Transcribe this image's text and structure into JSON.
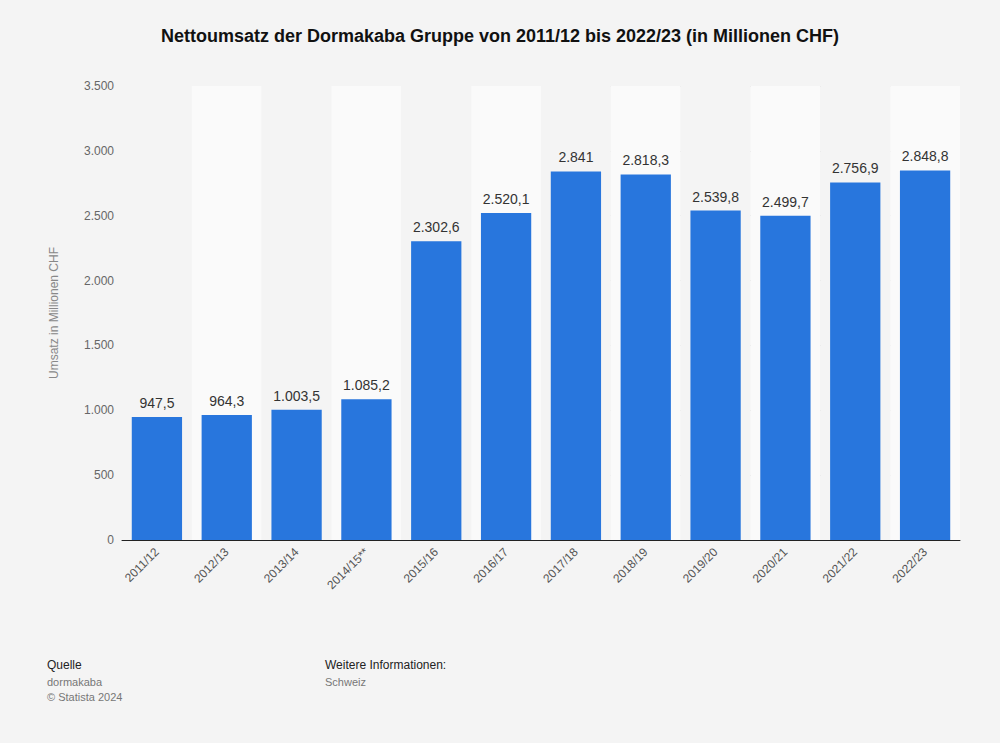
{
  "chart_data": {
    "type": "bar",
    "title": "Nettoumsatz der Dormakaba Gruppe von 2011/12 bis 2022/23 (in Millionen CHF)",
    "y_label": "Umsatz in Millionen CHF",
    "categories": [
      "2011/12",
      "2012/13",
      "2013/14",
      "2014/15**",
      "2015/16",
      "2016/17",
      "2017/18",
      "2018/19",
      "2019/20",
      "2020/21",
      "2021/22",
      "2022/23"
    ],
    "values": [
      947.5,
      964.3,
      1003.5,
      1085.2,
      2302.6,
      2520.1,
      2841,
      2818.3,
      2539.8,
      2499.7,
      2756.9,
      2848.8
    ],
    "value_labels": [
      "947,5",
      "964,3",
      "1.003,5",
      "1.085,2",
      "2.302,6",
      "2.520,1",
      "2.841",
      "2.818,3",
      "2.539,8",
      "2.499,7",
      "2.756,9",
      "2.848,8"
    ],
    "color": "#2876dd",
    "ylim": [
      0,
      3500
    ],
    "yticks": [
      0,
      500,
      {
        "value": 1000,
        "label": "1.000"
      },
      {
        "value": 1500,
        "label": "1.500"
      },
      {
        "value": 2000,
        "label": "2.000"
      },
      {
        "value": 2500,
        "label": "2.500"
      },
      {
        "value": 3000,
        "label": "3.000"
      },
      {
        "value": 3500,
        "label": "3.500"
      }
    ],
    "grid": true,
    "data_labels": true,
    "source_label": "Quelle",
    "source": "dormakaba",
    "copyright": "© Statista 2024",
    "info_label": "Weitere Informationen:",
    "info": "Schweiz"
  }
}
